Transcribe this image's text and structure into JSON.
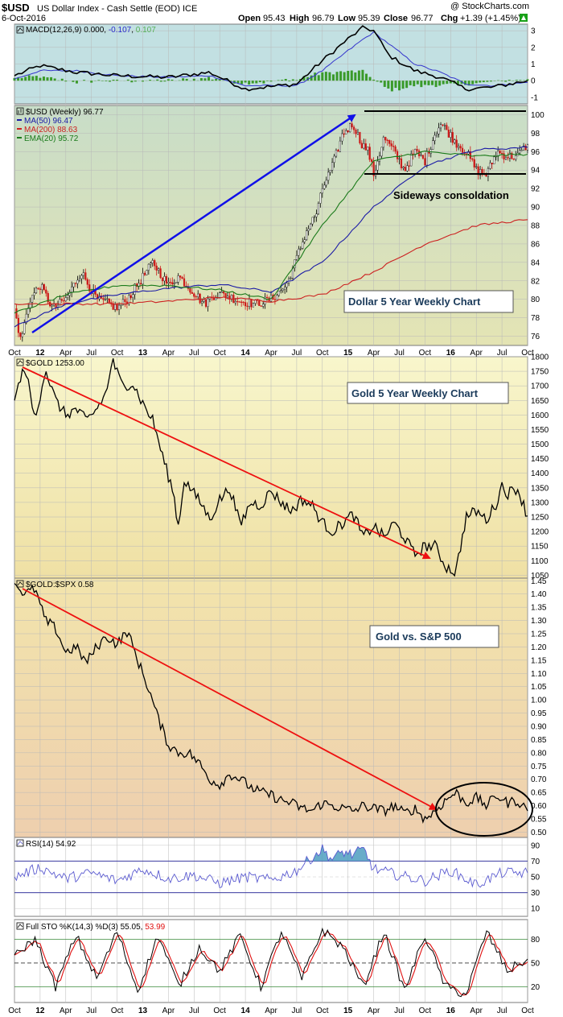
{
  "header": {
    "symbol": "$USD",
    "description": "US Dollar Index - Cash Settle (EOD) ICE",
    "date": "6-Oct-2016",
    "watermark": "@ StockCharts.com",
    "open_label": "Open",
    "open": "95.43",
    "high_label": "High",
    "high": "96.79",
    "low_label": "Low",
    "low": "95.39",
    "close_label": "Close",
    "close": "96.77",
    "chg_label": "Chg",
    "chg": "+1.39 (+1.45%)"
  },
  "time_axis": [
    "Oct",
    "12",
    "Apr",
    "Jul",
    "Oct",
    "13",
    "Apr",
    "Jul",
    "Oct",
    "14",
    "Apr",
    "Jul",
    "Oct",
    "15",
    "Apr",
    "Jul",
    "Oct",
    "16",
    "Apr",
    "Jul",
    "Oct"
  ],
  "colors": {
    "macd_bg": "#c2e0e2",
    "usd_bg_top": "#ccdfc8",
    "usd_bg_bottom": "#e2e4b8",
    "gold_bg_top": "#f7f5c8",
    "gold_bg_bottom": "#efe1a6",
    "ratio_bg_top": "#f2e0a8",
    "ratio_bg_bottom": "#eed0b0",
    "rsi_bg": "#ffffff",
    "sto_bg": "#ffffff",
    "ma50": "#1a1aa6",
    "ma200": "#cc2020",
    "ema20": "#1a7a1a",
    "arrow_blue": "#1010e8",
    "arrow_red": "#ee1010",
    "macd_line": "#000000",
    "macd_signal": "#3434cc",
    "macd_hist": "#3a9a2a",
    "rsi_line": "#5a5ad0",
    "rsi_fill": "#4e9ec0",
    "sto_k": "#000000",
    "sto_d": "#e01010"
  },
  "panels": {
    "macd": {
      "label_prefix": "MACD(12,26,9)",
      "v1": "0.000",
      "v2": "-0.107",
      "v3": "0.107",
      "ticks": [
        "3",
        "2",
        "1",
        "0",
        "-1"
      ]
    },
    "usd": {
      "label": "$USD (Weekly) 96.77",
      "ma50_label": "MA(50) 96.47",
      "ma200_label": "MA(200) 88.63",
      "ema20_label": "EMA(20) 95.72",
      "annotation": "Sideways consoldation",
      "box_title": "Dollar 5 Year Weekly Chart",
      "ticks": [
        "100",
        "98",
        "96",
        "94",
        "92",
        "90",
        "88",
        "86",
        "84",
        "82",
        "80",
        "78",
        "76"
      ]
    },
    "gold": {
      "label": "$GOLD 1253.00",
      "box_title": "Gold 5 Year Weekly Chart",
      "ticks": [
        "1800",
        "1750",
        "1700",
        "1650",
        "1600",
        "1550",
        "1500",
        "1450",
        "1400",
        "1350",
        "1300",
        "1250",
        "1200",
        "1150",
        "1100",
        "1050"
      ]
    },
    "ratio": {
      "label": "$GOLD:$SPX 0.58",
      "box_title": "Gold vs. S&P 500",
      "ticks": [
        "1.45",
        "1.40",
        "1.35",
        "1.30",
        "1.25",
        "1.20",
        "1.15",
        "1.10",
        "1.05",
        "1.00",
        "0.95",
        "0.90",
        "0.85",
        "0.80",
        "0.75",
        "0.70",
        "0.65",
        "0.60",
        "0.55",
        "0.50"
      ]
    },
    "rsi": {
      "label": "RSI(14) 54.92",
      "ticks": [
        "90",
        "70",
        "50",
        "30",
        "10"
      ]
    },
    "sto": {
      "label_prefix": "Full STO %K(14,3) %D(3)",
      "k": "55.05",
      "d": "53.99",
      "ticks": [
        "80",
        "50",
        "20"
      ]
    }
  },
  "chart_data": [
    {
      "type": "line",
      "title": "$USD (Weekly) 96.77",
      "series_anchors": [
        {
          "name": "$USD",
          "x": [
            0,
            0.012,
            0.03,
            0.05,
            0.075,
            0.1,
            0.13,
            0.16,
            0.185,
            0.2,
            0.22,
            0.245,
            0.27,
            0.3,
            0.32,
            0.345,
            0.37,
            0.39,
            0.41,
            0.44,
            0.47,
            0.5,
            0.53,
            0.55,
            0.57,
            0.59,
            0.6,
            0.62,
            0.64,
            0.66,
            0.675,
            0.69,
            0.7,
            0.72,
            0.74,
            0.76,
            0.78,
            0.8,
            0.82,
            0.83,
            0.84,
            0.86,
            0.88,
            0.9,
            0.92,
            0.94,
            0.96,
            0.98,
            1.0
          ],
          "values": [
            79,
            75.5,
            80,
            81.5,
            79,
            80,
            83,
            80,
            79.5,
            79,
            80,
            82,
            84,
            81.5,
            82.5,
            81,
            79.5,
            80.5,
            80.5,
            79.8,
            79.5,
            80,
            81.5,
            84.5,
            87.5,
            89.5,
            92,
            94.5,
            98,
            99,
            97,
            96,
            93.5,
            97.5,
            96,
            94,
            96,
            95,
            98,
            99,
            98.5,
            97,
            96,
            94,
            93.5,
            96,
            95.5,
            95.5,
            96.77
          ]
        },
        {
          "name": "MA(50)",
          "x": [
            0,
            0.1,
            0.2,
            0.3,
            0.4,
            0.5,
            0.6,
            0.7,
            0.8,
            0.9,
            1.0
          ],
          "values": [
            77,
            79.5,
            80.5,
            81.2,
            81.6,
            80.8,
            84,
            90,
            94.5,
            96.2,
            96.47
          ]
        },
        {
          "name": "MA(200)",
          "x": [
            0,
            0.1,
            0.2,
            0.3,
            0.4,
            0.5,
            0.6,
            0.7,
            0.8,
            0.9,
            1.0
          ],
          "values": [
            79.5,
            79.5,
            79.5,
            79.8,
            80.2,
            79.8,
            80.5,
            83,
            86,
            88,
            88.63
          ]
        },
        {
          "name": "EMA(20)",
          "x": [
            0,
            0.1,
            0.2,
            0.3,
            0.4,
            0.5,
            0.6,
            0.7,
            0.8,
            0.9,
            1.0
          ],
          "values": [
            78.5,
            80.5,
            81.5,
            81.5,
            81,
            80,
            88,
            95,
            96,
            95.5,
            95.72
          ]
        }
      ],
      "ylim": [
        75,
        101
      ]
    },
    {
      "type": "line",
      "title": "$GOLD 1253.00",
      "series_anchors": [
        {
          "name": "$GOLD",
          "x": [
            0,
            0.02,
            0.04,
            0.06,
            0.08,
            0.1,
            0.12,
            0.14,
            0.16,
            0.18,
            0.19,
            0.21,
            0.23,
            0.25,
            0.27,
            0.29,
            0.31,
            0.32,
            0.33,
            0.35,
            0.37,
            0.38,
            0.4,
            0.42,
            0.44,
            0.46,
            0.48,
            0.5,
            0.52,
            0.54,
            0.56,
            0.58,
            0.6,
            0.62,
            0.64,
            0.66,
            0.68,
            0.7,
            0.72,
            0.74,
            0.76,
            0.78,
            0.8,
            0.82,
            0.84,
            0.86,
            0.88,
            0.9,
            0.92,
            0.94,
            0.95,
            0.96,
            0.98,
            1.0
          ],
          "values": [
            1650,
            1770,
            1580,
            1760,
            1650,
            1600,
            1620,
            1580,
            1620,
            1680,
            1790,
            1700,
            1710,
            1640,
            1580,
            1450,
            1330,
            1210,
            1380,
            1330,
            1280,
            1240,
            1310,
            1350,
            1220,
            1300,
            1290,
            1340,
            1300,
            1270,
            1310,
            1290,
            1230,
            1200,
            1230,
            1260,
            1180,
            1220,
            1180,
            1230,
            1180,
            1120,
            1150,
            1150,
            1080,
            1060,
            1250,
            1270,
            1240,
            1300,
            1360,
            1330,
            1350,
            1253
          ]
        }
      ],
      "ylim": [
        1040,
        1800
      ]
    },
    {
      "type": "line",
      "title": "$GOLD:$SPX 0.58",
      "series_anchors": [
        {
          "name": "$GOLD:$SPX",
          "x": [
            0,
            0.02,
            0.04,
            0.06,
            0.08,
            0.1,
            0.12,
            0.14,
            0.16,
            0.18,
            0.2,
            0.22,
            0.24,
            0.26,
            0.28,
            0.3,
            0.32,
            0.34,
            0.36,
            0.38,
            0.4,
            0.42,
            0.44,
            0.46,
            0.48,
            0.5,
            0.52,
            0.54,
            0.56,
            0.58,
            0.6,
            0.62,
            0.64,
            0.66,
            0.68,
            0.7,
            0.72,
            0.74,
            0.76,
            0.78,
            0.8,
            0.82,
            0.84,
            0.86,
            0.88,
            0.9,
            0.92,
            0.94,
            0.96,
            0.98,
            1.0
          ],
          "values": [
            1.44,
            1.4,
            1.42,
            1.3,
            1.27,
            1.18,
            1.2,
            1.14,
            1.2,
            1.24,
            1.21,
            1.26,
            1.15,
            1.05,
            0.93,
            0.83,
            0.8,
            0.8,
            0.76,
            0.7,
            0.68,
            0.72,
            0.7,
            0.67,
            0.65,
            0.64,
            0.62,
            0.61,
            0.59,
            0.58,
            0.61,
            0.6,
            0.59,
            0.58,
            0.6,
            0.59,
            0.58,
            0.6,
            0.57,
            0.59,
            0.55,
            0.58,
            0.62,
            0.65,
            0.61,
            0.63,
            0.6,
            0.64,
            0.61,
            0.62,
            0.58
          ]
        }
      ],
      "ylim": [
        0.48,
        1.46
      ]
    },
    {
      "type": "line",
      "title": "RSI(14) 54.92",
      "series_anchors": [
        {
          "name": "RSI(14)",
          "x": [
            0,
            0.05,
            0.1,
            0.15,
            0.2,
            0.25,
            0.3,
            0.35,
            0.4,
            0.45,
            0.5,
            0.55,
            0.58,
            0.6,
            0.62,
            0.64,
            0.66,
            0.68,
            0.7,
            0.75,
            0.8,
            0.85,
            0.9,
            0.95,
            1.0
          ],
          "values": [
            50,
            62,
            48,
            55,
            45,
            60,
            48,
            52,
            42,
            50,
            46,
            58,
            75,
            85,
            72,
            82,
            78,
            85,
            60,
            52,
            45,
            58,
            40,
            55,
            54.92
          ]
        }
      ],
      "ylim": [
        0,
        100
      ]
    },
    {
      "type": "line",
      "title": "Full STO %K(14,3) %D(3) 55.05 53.99",
      "series_anchors": [
        {
          "name": "%K",
          "x": [
            0,
            0.04,
            0.08,
            0.12,
            0.16,
            0.2,
            0.24,
            0.28,
            0.32,
            0.36,
            0.4,
            0.44,
            0.48,
            0.52,
            0.56,
            0.6,
            0.64,
            0.68,
            0.72,
            0.76,
            0.8,
            0.84,
            0.88,
            0.92,
            0.96,
            1.0
          ],
          "values": [
            60,
            80,
            20,
            85,
            30,
            90,
            15,
            85,
            20,
            70,
            40,
            85,
            20,
            90,
            30,
            92,
            70,
            20,
            90,
            15,
            85,
            20,
            10,
            90,
            40,
            55.05
          ]
        },
        {
          "name": "%D",
          "x": [
            0,
            0.04,
            0.08,
            0.12,
            0.16,
            0.2,
            0.24,
            0.28,
            0.32,
            0.36,
            0.4,
            0.44,
            0.48,
            0.52,
            0.56,
            0.6,
            0.64,
            0.68,
            0.72,
            0.76,
            0.8,
            0.84,
            0.88,
            0.92,
            0.96,
            1.0
          ],
          "values": [
            55,
            75,
            28,
            78,
            35,
            85,
            22,
            78,
            26,
            66,
            44,
            80,
            26,
            85,
            35,
            88,
            74,
            26,
            85,
            22,
            80,
            26,
            15,
            84,
            45,
            53.99
          ]
        }
      ],
      "ylim": [
        0,
        100
      ]
    }
  ]
}
